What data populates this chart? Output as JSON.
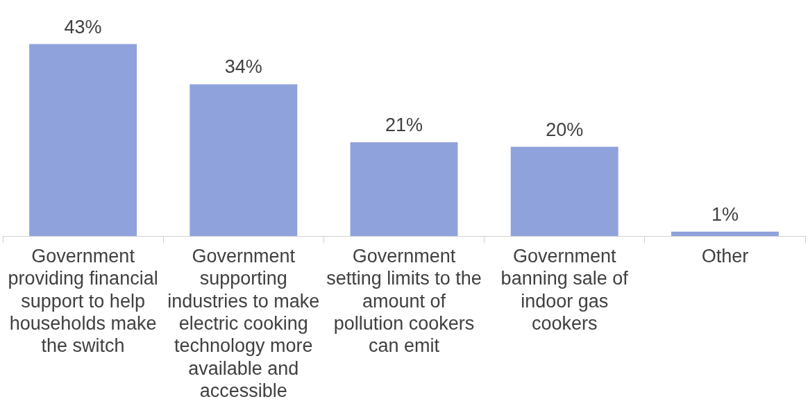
{
  "chart_data": {
    "type": "bar",
    "categories": [
      "Government providing financial support to help households make the switch",
      "Government supporting industries to make electric cooking technology more available and accessible",
      "Government setting limits to the amount of pollution cookers can emit",
      "Government banning sale of indoor gas cookers",
      "Other"
    ],
    "values": [
      43,
      34,
      21,
      20,
      1
    ],
    "color": "#8fa2dc",
    "data_labels": true,
    "value_labels": [
      "43%",
      "34%",
      "21%",
      "20%",
      "1%"
    ],
    "tick_labels": "x"
  }
}
